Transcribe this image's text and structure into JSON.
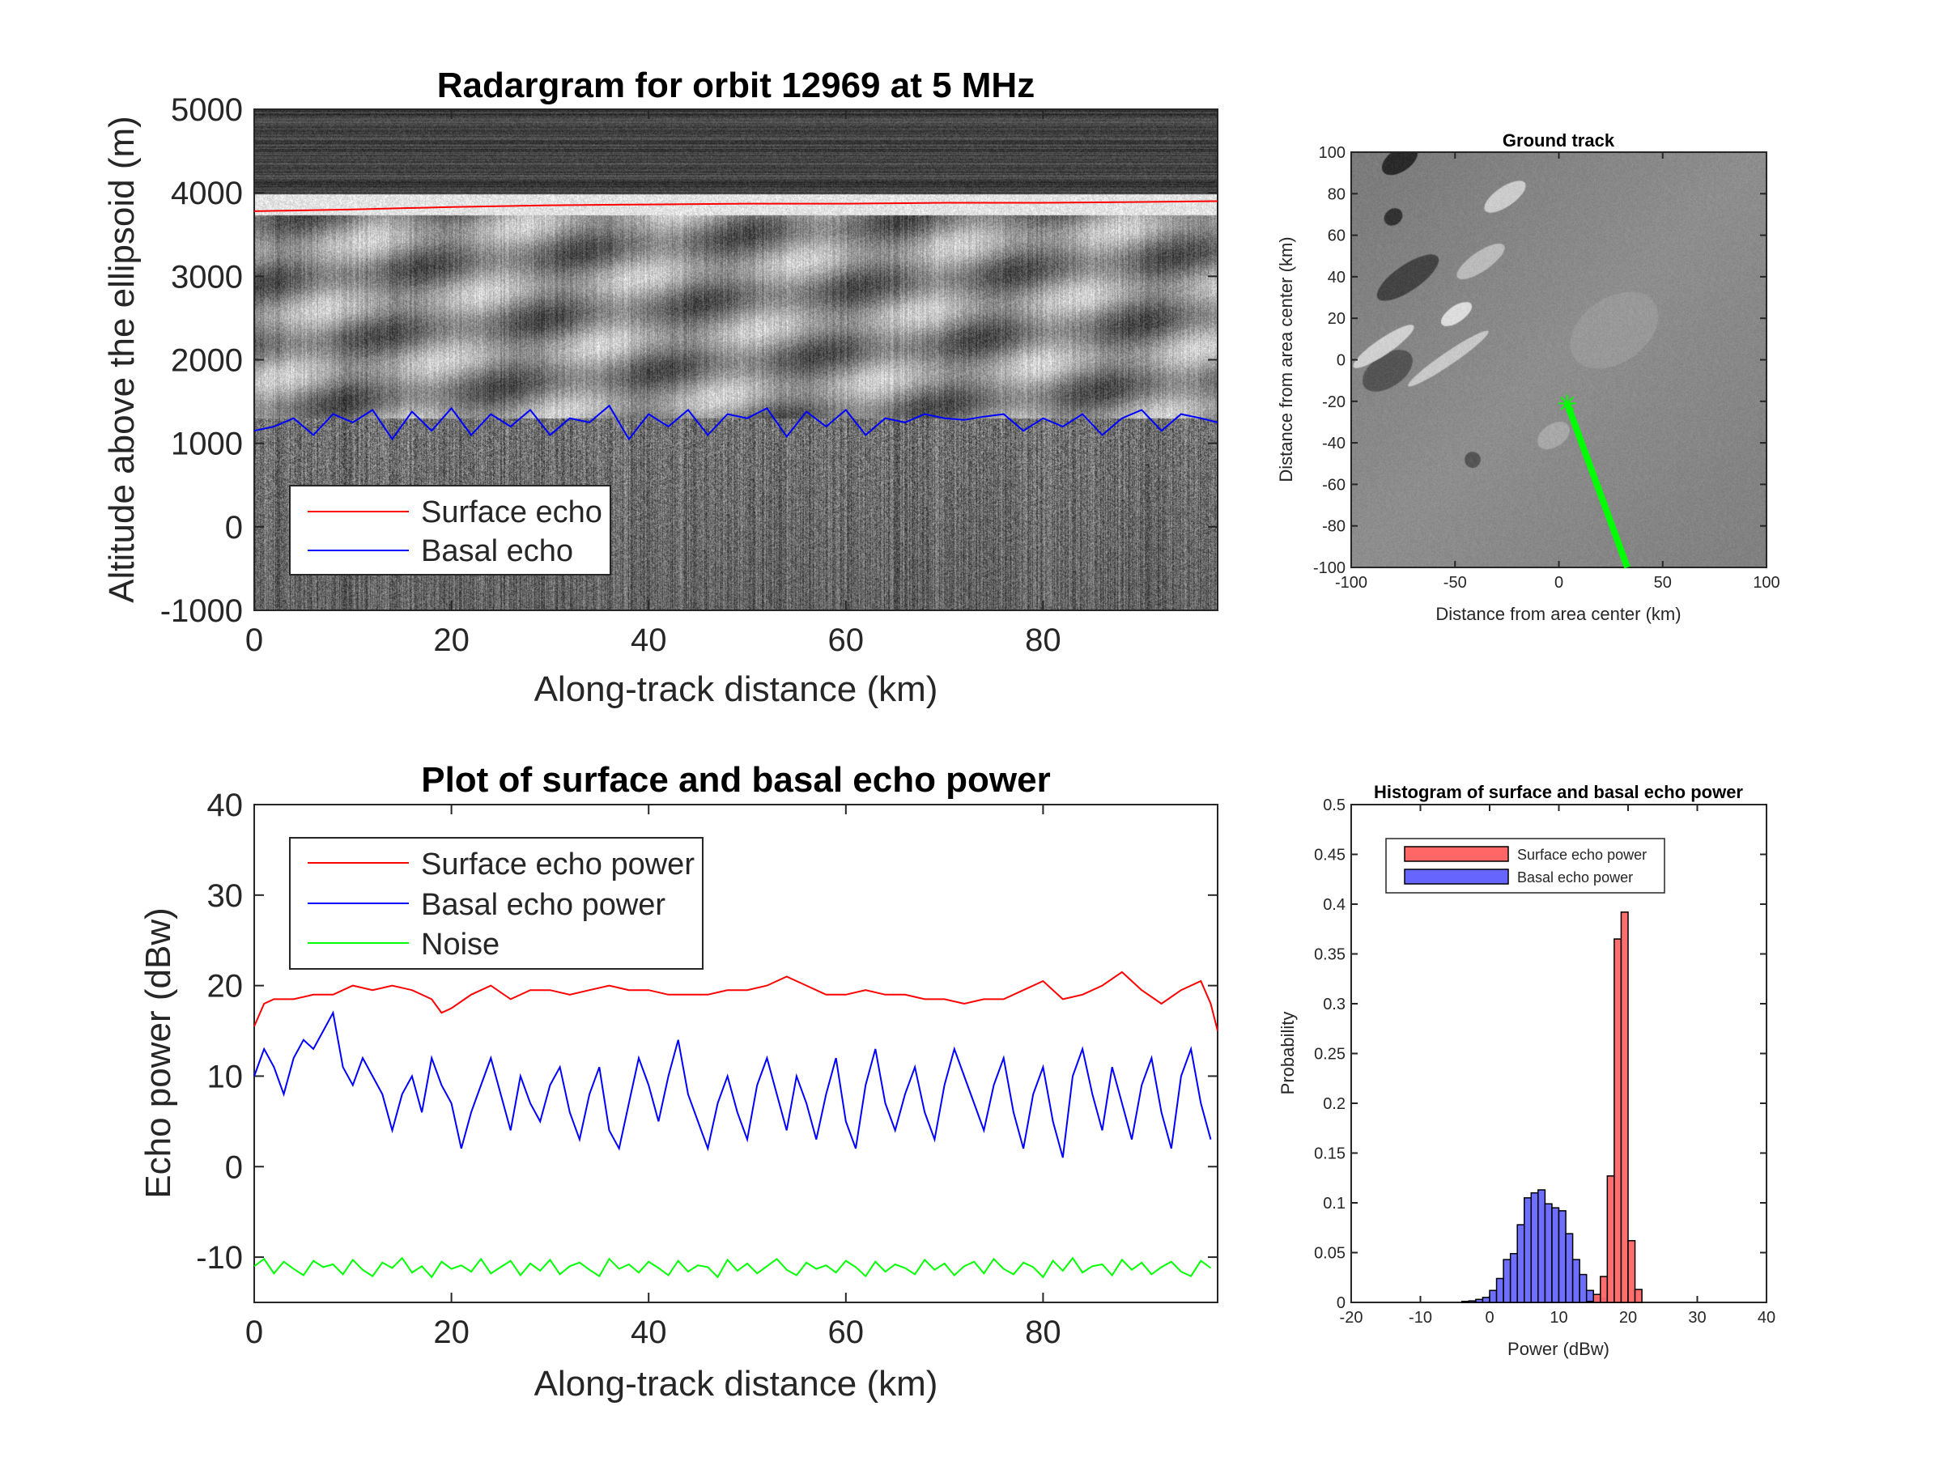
{
  "chart_data": [
    {
      "id": "radargram",
      "type": "heatmap",
      "title": "Radargram for orbit 12969 at 5 MHz",
      "xlabel": "Along-track distance (km)",
      "ylabel": "Altitude above the ellipsoid (m)",
      "xlim": [
        0,
        97.7
      ],
      "ylim": [
        -1000,
        5000
      ],
      "xticks": [
        "0",
        "20",
        "40",
        "60",
        "80"
      ],
      "yticks": [
        "5000",
        "4000",
        "3000",
        "2000",
        "1000",
        "0",
        "-1000"
      ],
      "legend": {
        "placement": "bottom-left",
        "entries": [
          "Surface echo",
          "Basal echo"
        ]
      },
      "series": [
        {
          "name": "Surface echo",
          "color": "#ff0000",
          "x": [
            0,
            10,
            20,
            30,
            40,
            50,
            60,
            70,
            80,
            90,
            97.7
          ],
          "y": [
            3780,
            3800,
            3830,
            3850,
            3860,
            3870,
            3870,
            3880,
            3880,
            3890,
            3900
          ]
        },
        {
          "name": "Basal echo",
          "color": "#0000ff",
          "x": [
            0,
            2,
            4,
            6,
            8,
            10,
            12,
            14,
            16,
            18,
            20,
            22,
            24,
            26,
            28,
            30,
            32,
            34,
            36,
            38,
            40,
            42,
            44,
            46,
            48,
            50,
            52,
            54,
            56,
            58,
            60,
            62,
            64,
            66,
            68,
            70,
            72,
            74,
            76,
            78,
            80,
            82,
            84,
            86,
            88,
            90,
            92,
            94,
            96,
            97.7
          ],
          "y": [
            1150,
            1200,
            1300,
            1100,
            1350,
            1250,
            1400,
            1050,
            1380,
            1150,
            1420,
            1100,
            1350,
            1200,
            1400,
            1100,
            1300,
            1250,
            1450,
            1050,
            1350,
            1200,
            1400,
            1100,
            1350,
            1300,
            1420,
            1080,
            1380,
            1200,
            1400,
            1100,
            1300,
            1250,
            1350,
            1300,
            1280,
            1320,
            1350,
            1150,
            1300,
            1200,
            1350,
            1100,
            1300,
            1400,
            1150,
            1350,
            1300,
            1250
          ]
        }
      ]
    },
    {
      "id": "ground_track",
      "type": "scatter",
      "title": "Ground track",
      "xlabel": "Distance from area center (km)",
      "ylabel": "Distance from area center (km)",
      "xlim": [
        -100,
        100
      ],
      "ylim": [
        -100,
        100
      ],
      "xticks": [
        "-100",
        "-50",
        "0",
        "50",
        "100"
      ],
      "yticks": [
        "100",
        "80",
        "60",
        "40",
        "20",
        "0",
        "-20",
        "-40",
        "-60",
        "-80",
        "-100"
      ],
      "track": {
        "color": "#00ff00",
        "x": [
          4,
          33
        ],
        "y": [
          -21,
          -100
        ]
      },
      "start_marker": {
        "x": 4,
        "y": -21
      }
    },
    {
      "id": "echo_power",
      "type": "line",
      "title": "Plot of surface and basal echo power",
      "xlabel": "Along-track distance (km)",
      "ylabel": "Echo power (dBw)",
      "xlim": [
        0,
        97.7
      ],
      "ylim": [
        -15,
        40
      ],
      "xticks": [
        "0",
        "20",
        "40",
        "60",
        "80"
      ],
      "yticks": [
        "40",
        "30",
        "20",
        "10",
        "0",
        "-10"
      ],
      "legend": {
        "placement": "top-left",
        "entries": [
          "Surface echo power",
          "Basal echo power",
          "Noise"
        ]
      },
      "series": [
        {
          "name": "Surface echo power",
          "color": "#ff0000",
          "x": [
            0,
            1,
            2,
            4,
            6,
            8,
            10,
            12,
            14,
            16,
            18,
            19,
            20,
            22,
            24,
            26,
            28,
            30,
            32,
            34,
            36,
            38,
            40,
            42,
            44,
            46,
            48,
            50,
            52,
            54,
            56,
            58,
            60,
            62,
            64,
            66,
            68,
            70,
            72,
            74,
            76,
            78,
            80,
            82,
            84,
            86,
            88,
            90,
            92,
            94,
            96,
            97,
            97.7
          ],
          "y": [
            15.5,
            18,
            18.5,
            18.5,
            19,
            19,
            20,
            19.5,
            20,
            19.5,
            18.5,
            17,
            17.5,
            19,
            20,
            18.5,
            19.5,
            19.5,
            19,
            19.5,
            20,
            19.5,
            19.5,
            19,
            19,
            19,
            19.5,
            19.5,
            20,
            21,
            20,
            19,
            19,
            19.5,
            19,
            19,
            18.5,
            18.5,
            18,
            18.5,
            18.5,
            19.5,
            20.5,
            18.5,
            19,
            20,
            21.5,
            19.5,
            18,
            19.5,
            20.5,
            18,
            15
          ]
        },
        {
          "name": "Basal echo power",
          "color": "#0000ff",
          "x0": 0,
          "dx": 1,
          "y": [
            10,
            13,
            11,
            8,
            12,
            14,
            13,
            15,
            17,
            11,
            9,
            12,
            10,
            8,
            4,
            8,
            10,
            6,
            12,
            9,
            7,
            2,
            6,
            9,
            12,
            8,
            4,
            10,
            7,
            5,
            9,
            11,
            6,
            3,
            8,
            11,
            4,
            2,
            7,
            12,
            9,
            5,
            10,
            14,
            8,
            5,
            2,
            7,
            10,
            6,
            3,
            9,
            12,
            8,
            4,
            10,
            7,
            3,
            8,
            12,
            5,
            2,
            9,
            13,
            7,
            4,
            8,
            11,
            6,
            3,
            9,
            13,
            10,
            7,
            4,
            9,
            12,
            6,
            2,
            8,
            11,
            5,
            1,
            10,
            13,
            8,
            4,
            11,
            7,
            3,
            9,
            12,
            6,
            2,
            10,
            13,
            7,
            3
          ]
        },
        {
          "name": "Noise",
          "color": "#00ff00",
          "x0": 0,
          "dx": 1,
          "y": [
            -11,
            -10.2,
            -11.8,
            -10.5,
            -11.3,
            -12,
            -10.4,
            -11.1,
            -10.8,
            -11.9,
            -10.3,
            -11.4,
            -12.1,
            -10.6,
            -11.2,
            -10.1,
            -11.7,
            -11,
            -12.2,
            -10.5,
            -11.3,
            -10.9,
            -11.6,
            -10.2,
            -11.8,
            -11.1,
            -10.4,
            -12,
            -10.7,
            -11.5,
            -10.3,
            -11.9,
            -11,
            -10.6,
            -11.4,
            -12.1,
            -10.2,
            -11.3,
            -10.8,
            -11.7,
            -10.5,
            -11.2,
            -12,
            -10.4,
            -11.6,
            -10.9,
            -11.1,
            -12.2,
            -10.3,
            -11.5,
            -10.7,
            -11.8,
            -11,
            -10.2,
            -11.4,
            -12,
            -10.6,
            -11.3,
            -10.9,
            -11.7,
            -10.4,
            -11.1,
            -12.1,
            -10.5,
            -11.6,
            -10.8,
            -11.2,
            -11.9,
            -10.3,
            -11.4,
            -10.7,
            -12,
            -11,
            -10.5,
            -11.8,
            -10.2,
            -11.3,
            -11.9,
            -10.6,
            -11.1,
            -12.2,
            -10.4,
            -11.5,
            -10.1,
            -11.7,
            -11,
            -10.8,
            -12,
            -10.3,
            -11.4,
            -10.6,
            -11.9,
            -11.1,
            -10.5,
            -11.6,
            -12.1,
            -10.4,
            -11.2
          ]
        }
      ]
    },
    {
      "id": "histogram",
      "type": "bar",
      "title": "Histogram of surface and basal echo power",
      "xlabel": "Power (dBw)",
      "ylabel": "Probability",
      "xlim": [
        -20,
        40
      ],
      "ylim": [
        0,
        0.5
      ],
      "xticks": [
        "-20",
        "-10",
        "0",
        "10",
        "20",
        "30",
        "40"
      ],
      "yticks": [
        "0.5",
        "0.45",
        "0.4",
        "0.35",
        "0.3",
        "0.25",
        "0.2",
        "0.15",
        "0.1",
        "0.05",
        "0"
      ],
      "bin_width": 1,
      "legend": {
        "placement": "top-left",
        "entries": [
          "Surface echo power",
          "Basal echo power"
        ]
      },
      "series": [
        {
          "name": "Basal echo power",
          "color": "#6666ff",
          "bin_starts": [
            -4,
            -3,
            -2,
            -1,
            0,
            1,
            2,
            3,
            4,
            5,
            6,
            7,
            8,
            9,
            10,
            11,
            12,
            13,
            14,
            15,
            16
          ],
          "values": [
            0.001,
            0.0015,
            0.003,
            0.005,
            0.012,
            0.024,
            0.043,
            0.049,
            0.078,
            0.105,
            0.11,
            0.113,
            0.099,
            0.095,
            0.092,
            0.069,
            0.043,
            0.028,
            0.012,
            0.005,
            0.004
          ]
        },
        {
          "name": "Surface echo power",
          "color": "#ff6666",
          "bin_starts": [
            14,
            15,
            16,
            17,
            18,
            19,
            20,
            21
          ],
          "values": [
            0.001,
            0.008,
            0.026,
            0.127,
            0.365,
            0.392,
            0.062,
            0.013
          ]
        }
      ]
    }
  ]
}
